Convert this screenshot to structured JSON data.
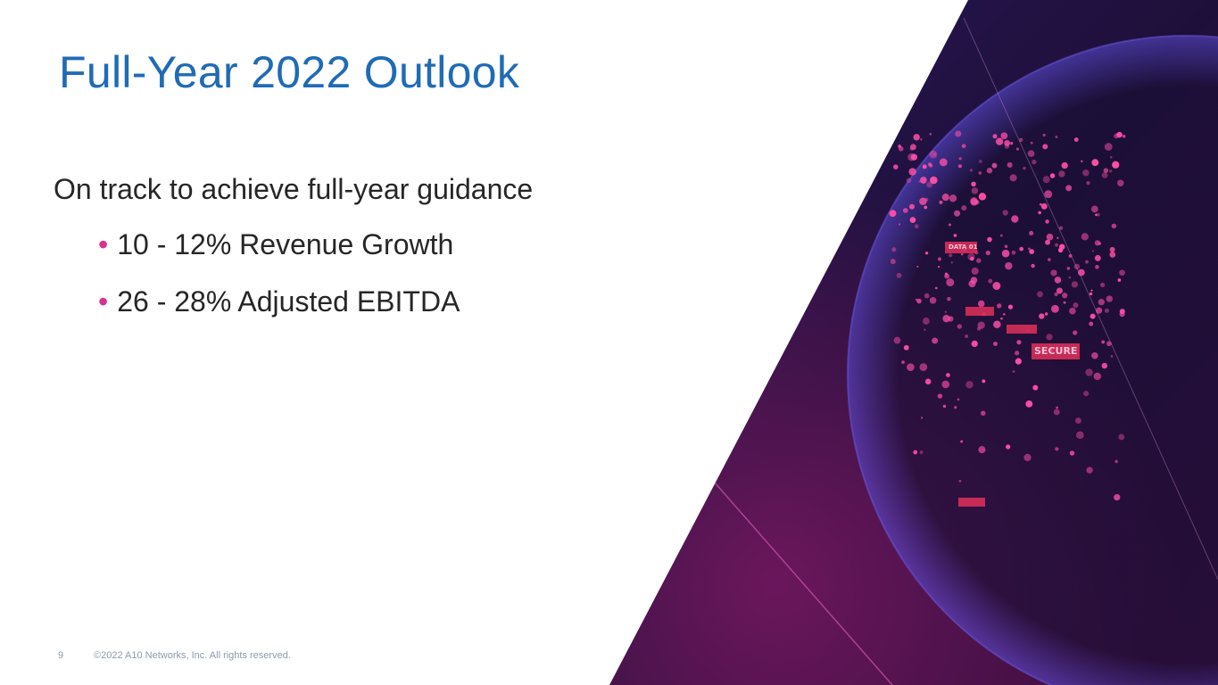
{
  "slide": {
    "title": "Full-Year 2022 Outlook",
    "lead": "On track to achieve full-year guidance",
    "bullets": [
      {
        "text": "10 - 12% Revenue Growth"
      },
      {
        "text": "26 - 28% Adjusted EBITDA"
      }
    ],
    "bullet_color": "#d6338f",
    "title_color": "#1f6bb6"
  },
  "footer": {
    "page_number": "9",
    "copyright": "©2022 A10 Networks, Inc. All rights reserved."
  },
  "image": {
    "subject": "globe-network-graphic",
    "lettering": [
      "SECURE",
      "DATA 01"
    ]
  }
}
